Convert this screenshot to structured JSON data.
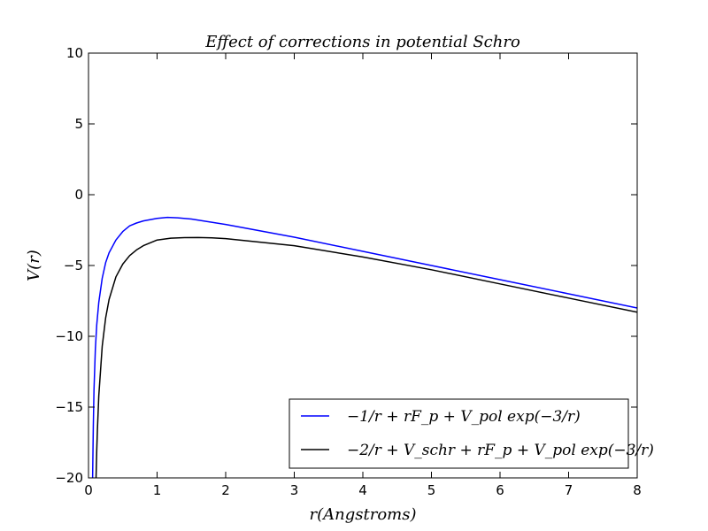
{
  "chart_data": {
    "type": "line",
    "title": "Effect of corrections in potential Schro",
    "xlabel": "r(Angstroms)",
    "ylabel": "V(r)",
    "xlim": [
      0,
      8
    ],
    "ylim": [
      -20,
      10
    ],
    "xticks": [
      0,
      1,
      2,
      3,
      4,
      5,
      6,
      7,
      8
    ],
    "yticks": [
      10,
      5,
      0,
      -5,
      -10,
      -15,
      -20
    ],
    "xtick_labels": [
      "0",
      "1",
      "2",
      "3",
      "4",
      "5",
      "6",
      "7",
      "8"
    ],
    "ytick_labels": [
      "10",
      "5",
      "0",
      "−5",
      "−10",
      "−15",
      "−20"
    ],
    "grid": false,
    "legend_position": "lower-right",
    "series": [
      {
        "name": "−1/r + rF_p + V_pol exp(−3/r)",
        "color": "#0000ff",
        "x": [
          0.06,
          0.07,
          0.08,
          0.1,
          0.12,
          0.15,
          0.2,
          0.25,
          0.3,
          0.4,
          0.5,
          0.6,
          0.7,
          0.8,
          1.0,
          1.15,
          1.3,
          1.5,
          2.0,
          3.0,
          4.0,
          5.0,
          6.0,
          7.0,
          8.0
        ],
        "y": [
          -20.0,
          -16.4,
          -13.8,
          -10.9,
          -9.2,
          -7.6,
          -5.9,
          -4.8,
          -4.1,
          -3.2,
          -2.6,
          -2.2,
          -2.0,
          -1.85,
          -1.67,
          -1.6,
          -1.63,
          -1.72,
          -2.1,
          -3.0,
          -4.0,
          -5.0,
          -6.0,
          -7.0,
          -8.0
        ]
      },
      {
        "name": "−2/r + V_schr + rF_p + V_pol exp(−3/r)",
        "color": "#000000",
        "x": [
          0.11,
          0.12,
          0.13,
          0.15,
          0.2,
          0.25,
          0.3,
          0.4,
          0.5,
          0.6,
          0.7,
          0.8,
          1.0,
          1.2,
          1.4,
          1.6,
          1.8,
          2.0,
          2.5,
          3.0,
          4.0,
          5.0,
          6.0,
          7.0,
          8.0
        ],
        "y": [
          -20.0,
          -18.1,
          -16.6,
          -14.2,
          -10.7,
          -8.7,
          -7.4,
          -5.8,
          -4.9,
          -4.3,
          -3.9,
          -3.6,
          -3.2,
          -3.07,
          -3.03,
          -3.02,
          -3.05,
          -3.1,
          -3.35,
          -3.6,
          -4.4,
          -5.3,
          -6.3,
          -7.3,
          -8.3
        ]
      }
    ]
  }
}
